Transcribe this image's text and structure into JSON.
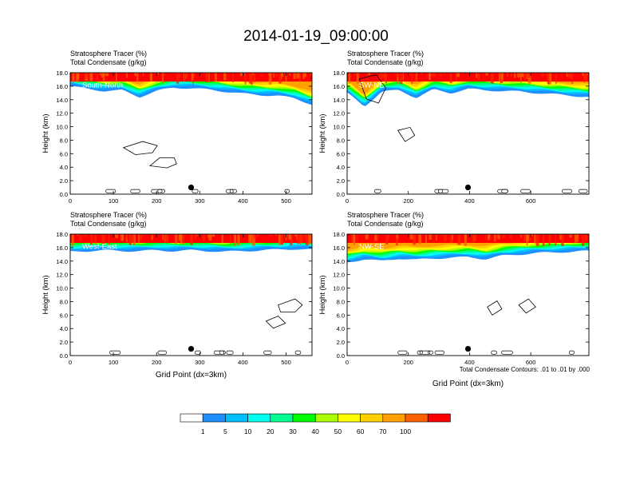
{
  "figure": {
    "title": "2014-01-19_09:00:00",
    "contour_note": "Total Condensate Contours: .01 to .01 by .000"
  },
  "chart_data": [
    {
      "type": "heatmap",
      "panel_label": "South-North",
      "title_lines": [
        "Stratosphere Tracer   (%)",
        "Total Condensate   (g/kg)"
      ],
      "ylabel": "Height (km)",
      "xlabel": "",
      "xlim": [
        0,
        560
      ],
      "ylim": [
        0,
        18
      ],
      "x_ticks": [
        "0",
        "100",
        "200",
        "300",
        "400",
        "500"
      ],
      "y_ticks": [
        "0.0",
        "2.0",
        "4.0",
        "6.0",
        "8.0",
        "10.0",
        "12.0",
        "14.0",
        "16.0",
        "18.0"
      ],
      "marker_x": 280,
      "marker_y": 1.0
    },
    {
      "type": "heatmap",
      "panel_label": "SW-NE",
      "title_lines": [
        "Stratosphere Tracer   (%)",
        "Total Condensate   (g/kg)"
      ],
      "ylabel": "Height (km)",
      "xlabel": "",
      "xlim": [
        0,
        790
      ],
      "ylim": [
        0,
        18
      ],
      "x_ticks": [
        "0",
        "200",
        "400",
        "600"
      ],
      "y_ticks": [
        "0.0",
        "2.0",
        "4.0",
        "6.0",
        "8.0",
        "10.0",
        "12.0",
        "14.0",
        "16.0",
        "18.0"
      ],
      "marker_x": 395,
      "marker_y": 1.0
    },
    {
      "type": "heatmap",
      "panel_label": "West-East",
      "title_lines": [
        "Stratosphere Tracer   (%)",
        "Total Condensate   (g/kg)"
      ],
      "ylabel": "Height (km)",
      "xlabel": "Grid Point (dx=3km)",
      "xlim": [
        0,
        560
      ],
      "ylim": [
        0,
        18
      ],
      "x_ticks": [
        "0",
        "100",
        "200",
        "300",
        "400",
        "500"
      ],
      "y_ticks": [
        "0.0",
        "2.0",
        "4.0",
        "6.0",
        "8.0",
        "10.0",
        "12.0",
        "14.0",
        "16.0",
        "18.0"
      ],
      "marker_x": 280,
      "marker_y": 1.0
    },
    {
      "type": "heatmap",
      "panel_label": "NW-SE",
      "title_lines": [
        "Stratosphere Tracer   (%)",
        "Total Condensate   (g/kg)"
      ],
      "ylabel": "Height (km)",
      "xlabel": "Grid Point (dx=3km)",
      "xlim": [
        0,
        790
      ],
      "ylim": [
        0,
        18
      ],
      "x_ticks": [
        "0",
        "200",
        "400",
        "600"
      ],
      "y_ticks": [
        "0.0",
        "2.0",
        "4.0",
        "6.0",
        "8.0",
        "10.0",
        "12.0",
        "14.0",
        "16.0",
        "18.0"
      ],
      "marker_x": 395,
      "marker_y": 1.0
    }
  ],
  "colorbar": {
    "labels": [
      "1",
      "5",
      "10",
      "20",
      "30",
      "40",
      "50",
      "60",
      "70",
      "100"
    ],
    "colors": [
      "#ffffff",
      "#1e90ff",
      "#00bfff",
      "#00ffee",
      "#00ff90",
      "#00ff00",
      "#aaff00",
      "#ffff00",
      "#ffd000",
      "#ffa000",
      "#ff6000",
      "#ff0000"
    ]
  }
}
